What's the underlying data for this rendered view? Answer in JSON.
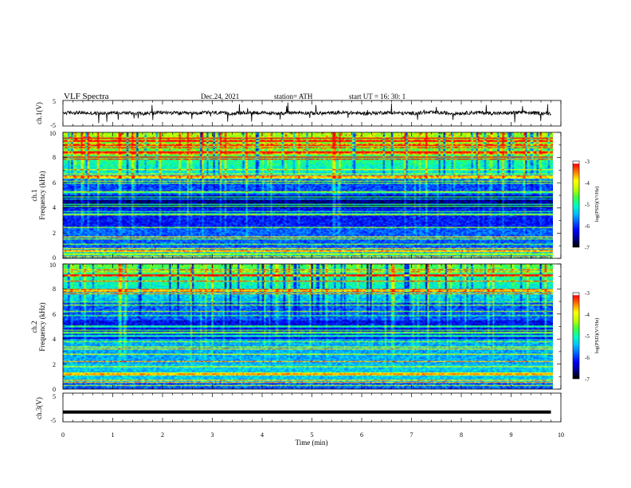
{
  "header": {
    "title": "VLF  Spectra",
    "date": "Dec.24, 2021",
    "station": "station= ATH",
    "start_ut": "start  UT  =    16: 30: 1"
  },
  "chart_data": [
    {
      "type": "line",
      "panel": "ch1-waveform",
      "ylabel": "ch.1(V)",
      "ylim": [
        -5,
        5
      ],
      "yticks": [
        "5",
        "-5"
      ],
      "xlim": [
        0,
        10
      ],
      "data_end_min": 9.8,
      "series": [
        {
          "values_note_range": [
            -1.4,
            1.6
          ]
        }
      ]
    },
    {
      "type": "heatmap",
      "panel": "ch1-spectrogram",
      "ylabel": "ch.1\nFrequency (kHz)",
      "ylabel_line1": "ch.1",
      "ylabel_line2": "Frequency (kHz)",
      "ylim": [
        0,
        10
      ],
      "yticks": [
        "0",
        "2",
        "4",
        "6",
        "8",
        "10"
      ],
      "xlim": [
        0,
        10
      ],
      "colorbar": {
        "label": "log(PSD)(V²/Hz)",
        "range": [
          -7,
          -3
        ],
        "ticks": [
          "-3",
          "-4",
          "-5",
          "-6",
          "-7"
        ]
      }
    },
    {
      "type": "heatmap",
      "panel": "ch2-spectrogram",
      "ylabel_line1": "ch.2",
      "ylabel_line2": "Frequency (kHz)",
      "ylim": [
        0,
        10
      ],
      "yticks": [
        "0",
        "2",
        "4",
        "6",
        "8",
        "10"
      ],
      "xlim": [
        0,
        10
      ],
      "colorbar": {
        "label": "log(PSD)(V²/Hz)",
        "range": [
          -7,
          -3
        ],
        "ticks": [
          "-3",
          "-4",
          "-5",
          "-6",
          "-7"
        ]
      }
    },
    {
      "type": "line",
      "panel": "ch3-waveform",
      "ylabel": "ch.3(V)",
      "ylim": [
        -5,
        5
      ],
      "yticks": [
        "5",
        "-5"
      ],
      "xlim": [
        0,
        10
      ],
      "series": [
        {
          "values": [
            -1.6,
            -1.6
          ]
        }
      ]
    }
  ],
  "xaxis": {
    "label": "Time  (min)",
    "ticks": [
      "0",
      "1",
      "2",
      "3",
      "4",
      "5",
      "6",
      "7",
      "8",
      "9",
      "10"
    ]
  },
  "colors": {
    "jet": [
      "#000000",
      "#00008f",
      "#0000ff",
      "#0060ff",
      "#00c0ff",
      "#00ffc0",
      "#40ff40",
      "#c0ff00",
      "#ffff00",
      "#ff8000",
      "#ff0000",
      "#ffffff"
    ]
  }
}
